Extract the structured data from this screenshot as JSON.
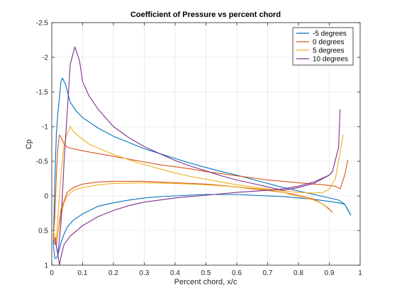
{
  "chart_data": {
    "type": "line",
    "title": "Coefficient of Pressure vs percent chord",
    "xlabel": "Percent chord, x/c",
    "ylabel": "Cp",
    "xlim": [
      0,
      1
    ],
    "ylim": [
      -2.5,
      1
    ],
    "y_reversed": true,
    "grid": true,
    "legend_position": "top-right",
    "x_ticks": [
      0,
      0.1,
      0.2,
      0.3,
      0.4,
      0.5,
      0.6,
      0.7,
      0.8,
      0.9,
      1
    ],
    "x_tick_labels": [
      "0",
      "0.1",
      "0.2",
      "0.3",
      "0.4",
      "0.5",
      "0.6",
      "0.7",
      "0.8",
      "0.9",
      "1"
    ],
    "y_ticks": [
      -2.5,
      -2,
      -1.5,
      -1,
      -0.5,
      0,
      0.5,
      1
    ],
    "y_tick_labels": [
      "-2.5",
      "-2",
      "-1.5",
      "-1",
      "-0.5",
      "0",
      "0.5",
      "1"
    ],
    "series": [
      {
        "name": "-5 degrees",
        "color": "#0072BD",
        "upper": [
          [
            0.005,
            0.7
          ],
          [
            0.01,
            -0.2
          ],
          [
            0.015,
            -0.9
          ],
          [
            0.02,
            -1.2
          ],
          [
            0.03,
            -1.65
          ],
          [
            0.035,
            -1.7
          ],
          [
            0.045,
            -1.6
          ],
          [
            0.06,
            -1.35
          ],
          [
            0.08,
            -1.22
          ],
          [
            0.1,
            -1.13
          ],
          [
            0.15,
            -0.98
          ],
          [
            0.2,
            -0.86
          ],
          [
            0.25,
            -0.77
          ],
          [
            0.3,
            -0.68
          ],
          [
            0.35,
            -0.61
          ],
          [
            0.4,
            -0.54
          ],
          [
            0.45,
            -0.47
          ],
          [
            0.5,
            -0.41
          ],
          [
            0.55,
            -0.35
          ],
          [
            0.6,
            -0.3
          ],
          [
            0.65,
            -0.24
          ],
          [
            0.7,
            -0.18
          ],
          [
            0.75,
            -0.12
          ],
          [
            0.8,
            -0.07
          ],
          [
            0.85,
            -0.02
          ],
          [
            0.9,
            0.03
          ],
          [
            0.93,
            0.06
          ],
          [
            0.95,
            0.12
          ],
          [
            0.97,
            0.28
          ]
        ],
        "lower": [
          [
            0.005,
            0.7
          ],
          [
            0.01,
            0.9
          ],
          [
            0.015,
            0.9
          ],
          [
            0.02,
            0.85
          ],
          [
            0.03,
            0.68
          ],
          [
            0.04,
            0.55
          ],
          [
            0.05,
            0.45
          ],
          [
            0.07,
            0.35
          ],
          [
            0.1,
            0.26
          ],
          [
            0.15,
            0.15
          ],
          [
            0.2,
            0.1
          ],
          [
            0.25,
            0.06
          ],
          [
            0.3,
            0.03
          ],
          [
            0.35,
            0.01
          ],
          [
            0.4,
            0
          ],
          [
            0.45,
            -0.01
          ],
          [
            0.5,
            -0.02
          ],
          [
            0.55,
            -0.02
          ],
          [
            0.6,
            -0.02
          ],
          [
            0.65,
            -0.01
          ],
          [
            0.7,
            0
          ],
          [
            0.75,
            0.01
          ],
          [
            0.8,
            0.03
          ],
          [
            0.85,
            0.05
          ],
          [
            0.9,
            0.08
          ],
          [
            0.93,
            0.1
          ],
          [
            0.95,
            0.12
          ],
          [
            0.97,
            0.28
          ]
        ]
      },
      {
        "name": "0 degrees",
        "color": "#D95319",
        "upper": [
          [
            0.005,
            0.6
          ],
          [
            0.01,
            0.3
          ],
          [
            0.015,
            -0.3
          ],
          [
            0.02,
            -0.7
          ],
          [
            0.025,
            -0.88
          ],
          [
            0.03,
            -0.85
          ],
          [
            0.04,
            -0.75
          ],
          [
            0.05,
            -0.7
          ],
          [
            0.1,
            -0.65
          ],
          [
            0.15,
            -0.61
          ],
          [
            0.2,
            -0.57
          ],
          [
            0.25,
            -0.53
          ],
          [
            0.3,
            -0.49
          ],
          [
            0.35,
            -0.45
          ],
          [
            0.4,
            -0.42
          ],
          [
            0.45,
            -0.39
          ],
          [
            0.5,
            -0.35
          ],
          [
            0.55,
            -0.32
          ],
          [
            0.6,
            -0.29
          ],
          [
            0.65,
            -0.26
          ],
          [
            0.7,
            -0.23
          ],
          [
            0.75,
            -0.21
          ],
          [
            0.8,
            -0.19
          ],
          [
            0.85,
            -0.17
          ],
          [
            0.88,
            -0.16
          ],
          [
            0.9,
            -0.15
          ],
          [
            0.92,
            -0.14
          ],
          [
            0.935,
            -0.1
          ],
          [
            0.95,
            -0.3
          ],
          [
            0.96,
            -0.52
          ]
        ],
        "lower": [
          [
            0.005,
            0.6
          ],
          [
            0.01,
            0.7
          ],
          [
            0.015,
            0.7
          ],
          [
            0.02,
            0.55
          ],
          [
            0.03,
            0.2
          ],
          [
            0.05,
            -0.05
          ],
          [
            0.07,
            -0.12
          ],
          [
            0.1,
            -0.17
          ],
          [
            0.15,
            -0.2
          ],
          [
            0.2,
            -0.21
          ],
          [
            0.25,
            -0.21
          ],
          [
            0.3,
            -0.21
          ],
          [
            0.35,
            -0.2
          ],
          [
            0.4,
            -0.19
          ],
          [
            0.45,
            -0.18
          ],
          [
            0.5,
            -0.17
          ],
          [
            0.55,
            -0.15
          ],
          [
            0.6,
            -0.13
          ],
          [
            0.65,
            -0.1
          ],
          [
            0.7,
            -0.08
          ],
          [
            0.75,
            -0.05
          ],
          [
            0.8,
            -0.01
          ],
          [
            0.85,
            0.05
          ],
          [
            0.88,
            0.12
          ],
          [
            0.9,
            0.19
          ],
          [
            0.91,
            0.24
          ]
        ]
      },
      {
        "name": "5 degrees",
        "color": "#EDB120",
        "upper": [
          [
            0.005,
            0.5
          ],
          [
            0.015,
            0.65
          ],
          [
            0.02,
            0.3
          ],
          [
            0.03,
            -0.3
          ],
          [
            0.04,
            -0.75
          ],
          [
            0.05,
            -0.9
          ],
          [
            0.06,
            -1.0
          ],
          [
            0.07,
            -0.93
          ],
          [
            0.09,
            -0.85
          ],
          [
            0.12,
            -0.75
          ],
          [
            0.15,
            -0.69
          ],
          [
            0.2,
            -0.6
          ],
          [
            0.25,
            -0.52
          ],
          [
            0.3,
            -0.45
          ],
          [
            0.35,
            -0.39
          ],
          [
            0.4,
            -0.33
          ],
          [
            0.45,
            -0.28
          ],
          [
            0.5,
            -0.24
          ],
          [
            0.55,
            -0.2
          ],
          [
            0.6,
            -0.16
          ],
          [
            0.65,
            -0.13
          ],
          [
            0.7,
            -0.1
          ],
          [
            0.75,
            -0.07
          ],
          [
            0.8,
            -0.05
          ],
          [
            0.85,
            -0.04
          ],
          [
            0.88,
            -0.05
          ],
          [
            0.9,
            -0.1
          ],
          [
            0.92,
            -0.25
          ],
          [
            0.945,
            -0.88
          ]
        ],
        "lower": [
          [
            0.005,
            0.5
          ],
          [
            0.015,
            0.65
          ],
          [
            0.02,
            0.55
          ],
          [
            0.03,
            0.3
          ],
          [
            0.04,
            0.1
          ],
          [
            0.05,
            0.0
          ],
          [
            0.07,
            -0.08
          ],
          [
            0.1,
            -0.12
          ],
          [
            0.15,
            -0.16
          ],
          [
            0.2,
            -0.18
          ],
          [
            0.3,
            -0.19
          ],
          [
            0.4,
            -0.18
          ],
          [
            0.5,
            -0.16
          ],
          [
            0.6,
            -0.13
          ],
          [
            0.7,
            -0.09
          ],
          [
            0.75,
            -0.05
          ],
          [
            0.8,
            0.01
          ],
          [
            0.85,
            0.06
          ],
          [
            0.88,
            0.12
          ],
          [
            0.9,
            0.2
          ]
        ]
      },
      {
        "name": "10 degrees",
        "color": "#7E2F8E",
        "upper": [
          [
            0.01,
            0.6
          ],
          [
            0.02,
            0.85
          ],
          [
            0.03,
            0.4
          ],
          [
            0.04,
            -0.5
          ],
          [
            0.05,
            -1.2
          ],
          [
            0.06,
            -1.9
          ],
          [
            0.075,
            -2.15
          ],
          [
            0.09,
            -1.95
          ],
          [
            0.1,
            -1.65
          ],
          [
            0.12,
            -1.45
          ],
          [
            0.15,
            -1.25
          ],
          [
            0.2,
            -1.0
          ],
          [
            0.25,
            -0.84
          ],
          [
            0.3,
            -0.71
          ],
          [
            0.35,
            -0.61
          ],
          [
            0.4,
            -0.51
          ],
          [
            0.45,
            -0.43
          ],
          [
            0.5,
            -0.36
          ],
          [
            0.55,
            -0.29
          ],
          [
            0.6,
            -0.23
          ],
          [
            0.65,
            -0.18
          ],
          [
            0.7,
            -0.13
          ],
          [
            0.75,
            -0.08
          ],
          [
            0.8,
            -0.12
          ],
          [
            0.85,
            -0.18
          ],
          [
            0.9,
            -0.3
          ],
          [
            0.91,
            -0.35
          ],
          [
            0.93,
            -0.7
          ],
          [
            0.935,
            -1.25
          ]
        ],
        "lower": [
          [
            0.01,
            0.6
          ],
          [
            0.02,
            0.85
          ],
          [
            0.025,
            1.0
          ],
          [
            0.03,
            0.88
          ],
          [
            0.04,
            0.7
          ],
          [
            0.06,
            0.58
          ],
          [
            0.1,
            0.43
          ],
          [
            0.15,
            0.3
          ],
          [
            0.2,
            0.21
          ],
          [
            0.25,
            0.14
          ],
          [
            0.3,
            0.09
          ],
          [
            0.4,
            0.03
          ],
          [
            0.5,
            -0.01
          ],
          [
            0.6,
            -0.05
          ],
          [
            0.7,
            -0.08
          ],
          [
            0.75,
            -0.1
          ],
          [
            0.8,
            -0.14
          ],
          [
            0.85,
            -0.2
          ],
          [
            0.9,
            -0.3
          ],
          [
            0.91,
            -0.35
          ]
        ]
      }
    ]
  }
}
